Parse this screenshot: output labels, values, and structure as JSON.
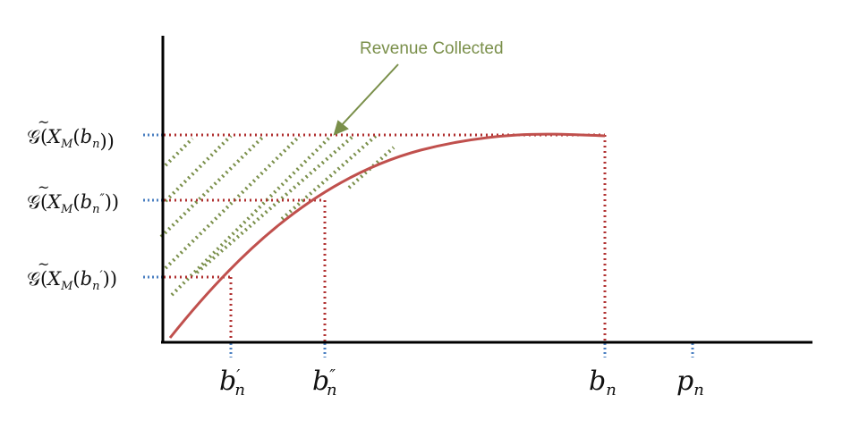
{
  "annotation": {
    "text": "Revenue Collected"
  },
  "y_labels": [
    {
      "g": "𝒢(",
      "x": "X",
      "sub": "M",
      "paren": "(",
      "b": "b",
      "bsub": "n",
      "prime": "",
      "close": "))"
    },
    {
      "g": "𝒢(",
      "x": "X",
      "sub": "M",
      "paren": "(",
      "b": "b",
      "bsub": "n",
      "prime": "″",
      "close": "))"
    },
    {
      "g": "𝒢(",
      "x": "X",
      "sub": "M",
      "paren": "(",
      "b": "b",
      "bsub": "n",
      "prime": "′",
      "close": "))"
    }
  ],
  "x_labels": [
    {
      "base": "b",
      "sub": "n",
      "prime": "′"
    },
    {
      "base": "b",
      "sub": "n",
      "prime": "″"
    },
    {
      "base": "b",
      "sub": "n",
      "prime": ""
    },
    {
      "base": "p",
      "sub": "n",
      "prime": ""
    }
  ],
  "colors": {
    "axis": "#000000",
    "curve": "#c0504d",
    "guide": "#b03030",
    "tick": "#4a7fc1",
    "hatch": "#7a8f4a"
  }
}
